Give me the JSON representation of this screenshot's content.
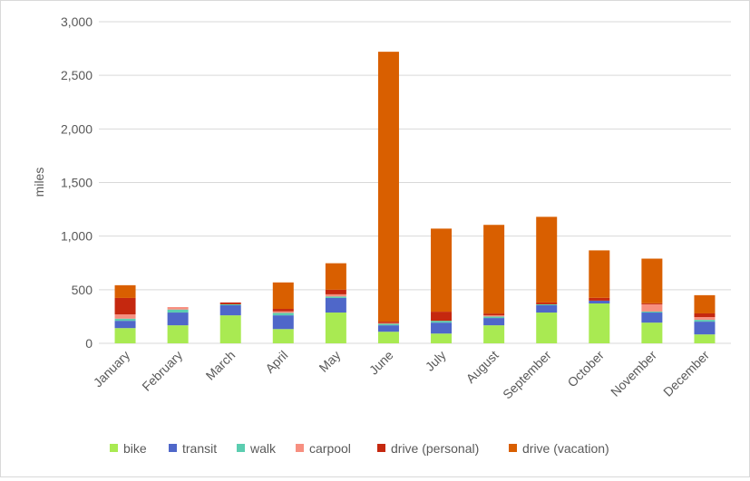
{
  "chart_data": {
    "type": "bar",
    "stacked": true,
    "title": "",
    "xlabel": "",
    "ylabel": "miles",
    "ylim": [
      0,
      3000
    ],
    "yticks": [
      0,
      500,
      1000,
      1500,
      2000,
      2500,
      3000
    ],
    "ytick_labels": [
      "0",
      "500",
      "1,000",
      "1,500",
      "2,000",
      "2,500",
      "3,000"
    ],
    "grid": "horizontal",
    "legend_position": "bottom",
    "categories": [
      "January",
      "February",
      "March",
      "April",
      "May",
      "June",
      "July",
      "August",
      "September",
      "October",
      "November",
      "December"
    ],
    "series": [
      {
        "name": "bike",
        "color": "#a9ea52",
        "values": [
          142,
          168,
          261,
          133,
          287,
          108,
          91,
          168,
          287,
          372,
          193,
          83
        ]
      },
      {
        "name": "transit",
        "color": "#4f67c9",
        "values": [
          68,
          119,
          94,
          128,
          136,
          60,
          102,
          68,
          68,
          26,
          94,
          119
        ]
      },
      {
        "name": "walk",
        "color": "#5bcdb0",
        "values": [
          20,
          28,
          9,
          23,
          14,
          14,
          17,
          14,
          9,
          0,
          9,
          17
        ]
      },
      {
        "name": "carpool",
        "color": "#f78f80",
        "values": [
          40,
          23,
          0,
          14,
          20,
          6,
          0,
          11,
          0,
          0,
          68,
          26
        ]
      },
      {
        "name": "drive (personal)",
        "color": "#c5280f",
        "values": [
          153,
          0,
          17,
          23,
          43,
          14,
          85,
          17,
          17,
          26,
          9,
          34
        ]
      },
      {
        "name": "drive (vacation)",
        "color": "#d95f00",
        "values": [
          119,
          0,
          0,
          247,
          247,
          2518,
          775,
          827,
          799,
          443,
          417,
          170
        ]
      }
    ]
  }
}
